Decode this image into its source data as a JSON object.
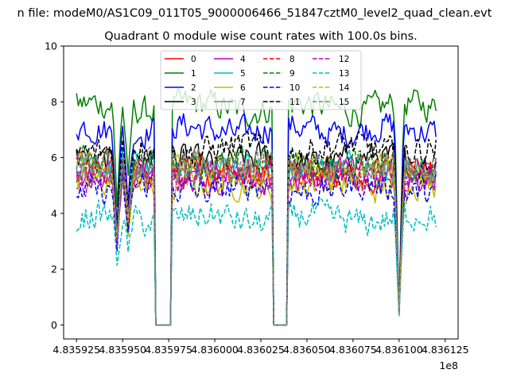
{
  "chart_data": {
    "type": "line",
    "suptitle": "n file: modeM0/AS1C09_011T05_9000006466_51847cztM0_level2_quad_clean.evt",
    "title": "Quadrant 0 module wise count rates with 100.0s bins.",
    "xlabel": "",
    "ylabel": "",
    "x_offset_label": "1e8",
    "x_tick_values": [
      483592500,
      483595000,
      483597500,
      483600000,
      483602500,
      483605000,
      483607500,
      483610000,
      483612500
    ],
    "x_tick_labels": [
      "4.835925",
      "4.835950",
      "4.835975",
      "4.836000",
      "4.836025",
      "4.836050",
      "4.836075",
      "4.836100",
      "4.836125"
    ],
    "y_tick_values": [
      0,
      2,
      4,
      6,
      8,
      10
    ],
    "y_tick_labels": [
      "0",
      "2",
      "4",
      "6",
      "8",
      "10"
    ],
    "xlim": [
      483591800,
      483613200
    ],
    "ylim": [
      -0.5,
      10
    ],
    "x_start": 483592500,
    "x_end": 483612000,
    "bin_seconds": 100,
    "gaps": [
      {
        "start": 483596800,
        "end": 483597600
      },
      {
        "start": 483603200,
        "end": 483603900
      }
    ],
    "dips": [
      {
        "center": 483594700,
        "depth": 0.45
      },
      {
        "center": 483595300,
        "depth": 0.35
      },
      {
        "center": 483610000,
        "depth": 0.92
      }
    ],
    "legend_position": "upper center",
    "series": [
      {
        "name": "0",
        "color": "#ff0000",
        "dash": "solid",
        "mean": 5.3
      },
      {
        "name": "1",
        "color": "#008000",
        "dash": "solid",
        "mean": 7.8
      },
      {
        "name": "2",
        "color": "#0000ff",
        "dash": "solid",
        "mean": 7.0
      },
      {
        "name": "3",
        "color": "#000000",
        "dash": "solid",
        "mean": 5.9
      },
      {
        "name": "4",
        "color": "#bf00bf",
        "dash": "solid",
        "mean": 5.4
      },
      {
        "name": "5",
        "color": "#00bfbf",
        "dash": "solid",
        "mean": 5.6
      },
      {
        "name": "6",
        "color": "#bfbf00",
        "dash": "solid",
        "mean": 5.0
      },
      {
        "name": "7",
        "color": "#808080",
        "dash": "solid",
        "mean": 5.5
      },
      {
        "name": "8",
        "color": "#ff0000",
        "dash": "dashed",
        "mean": 5.6
      },
      {
        "name": "9",
        "color": "#008000",
        "dash": "dashed",
        "mean": 5.8
      },
      {
        "name": "10",
        "color": "#0000ff",
        "dash": "dashed",
        "mean": 4.9
      },
      {
        "name": "11",
        "color": "#000000",
        "dash": "dashed",
        "mean": 6.3
      },
      {
        "name": "12",
        "color": "#bf00bf",
        "dash": "dashed",
        "mean": 5.3
      },
      {
        "name": "13",
        "color": "#00bfbf",
        "dash": "dashed",
        "mean": 3.8
      },
      {
        "name": "14",
        "color": "#bfbf00",
        "dash": "dashed",
        "mean": 5.5
      },
      {
        "name": "15",
        "color": "#808080",
        "dash": "dashed",
        "mean": 5.7
      }
    ]
  }
}
